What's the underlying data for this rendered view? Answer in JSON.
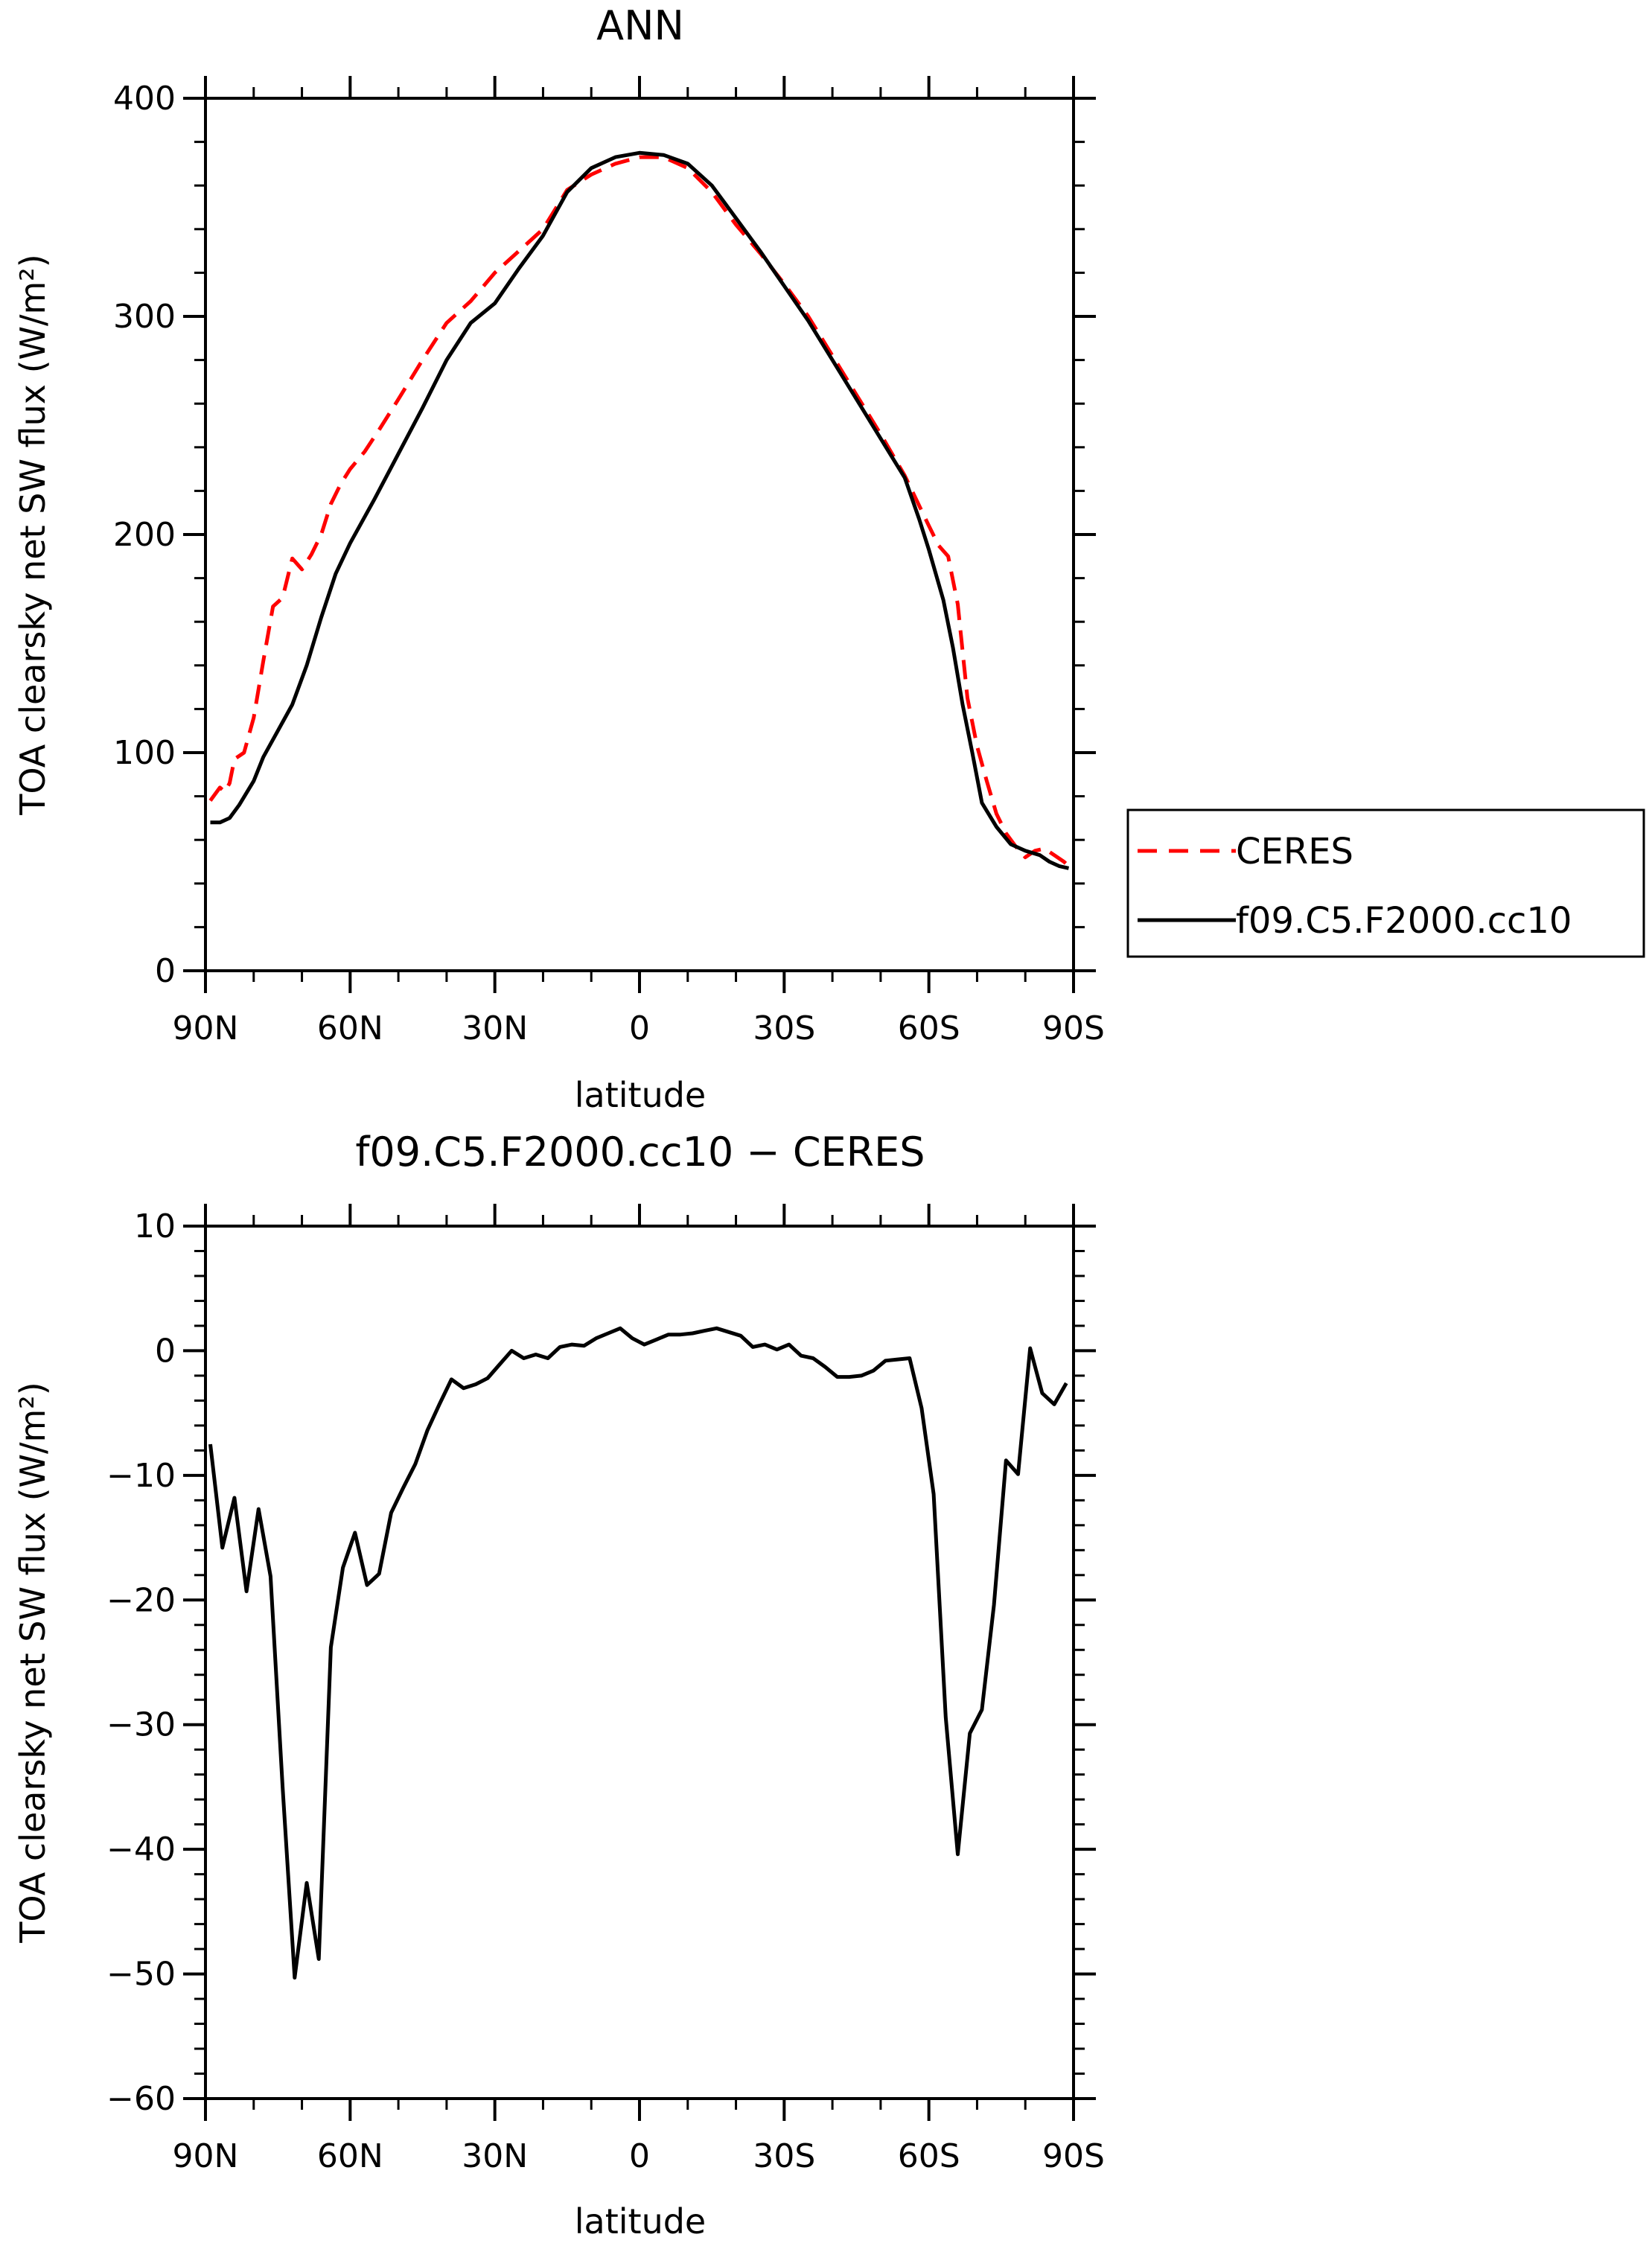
{
  "legend": {
    "items": [
      {
        "label": "CERES",
        "color": "#ff0000",
        "dash": "dashed"
      },
      {
        "label": "f09.C5.F2000.cc10",
        "color": "#000000",
        "dash": "solid"
      }
    ]
  },
  "chart_data": [
    {
      "type": "line",
      "title": "ANN",
      "xlabel": "latitude",
      "ylabel": "TOA clearsky net SW flux (W/m²)",
      "xlim": [
        90,
        -90
      ],
      "ylim": [
        0,
        400
      ],
      "xticks": [
        90,
        60,
        30,
        0,
        -30,
        -60,
        -90
      ],
      "xticklabels": [
        "90N",
        "60N",
        "30N",
        "0",
        "30S",
        "60S",
        "90S"
      ],
      "yticks": [
        0,
        100,
        200,
        300,
        400
      ],
      "yticklabels": [
        "0",
        "100",
        "200",
        "300",
        "400"
      ],
      "grid": false,
      "legend_position": "right",
      "series": [
        {
          "name": "CERES",
          "color": "#ff0000",
          "style": "dashed",
          "x": [
            89,
            87,
            86,
            85,
            84,
            82,
            80,
            78,
            76,
            74,
            72,
            70,
            68,
            66,
            64,
            62,
            60,
            57,
            54,
            50,
            45,
            40,
            35,
            30,
            25,
            20,
            15,
            10,
            5,
            0,
            -5,
            -10,
            -15,
            -20,
            -25,
            -30,
            -35,
            -40,
            -45,
            -50,
            -55,
            -60,
            -62,
            -64,
            -66,
            -68,
            -70,
            -72,
            -74,
            -76,
            -78,
            -80,
            -82,
            -84,
            -86,
            -88,
            -89
          ],
          "y": [
            78,
            84,
            82,
            86,
            97,
            100,
            116,
            142,
            167,
            171,
            189,
            184,
            191,
            200,
            214,
            223,
            230,
            238,
            248,
            262,
            280,
            297,
            307,
            320,
            330,
            340,
            358,
            365,
            370,
            373,
            373,
            368,
            357,
            342,
            329,
            315,
            300,
            282,
            264,
            246,
            227,
            204,
            195,
            190,
            168,
            125,
            103,
            87,
            72,
            63,
            57,
            52,
            55,
            56,
            53,
            50,
            48
          ]
        },
        {
          "name": "f09.C5.F2000.cc10",
          "color": "#000000",
          "style": "solid",
          "x": [
            89,
            87,
            85,
            83,
            80,
            78,
            75,
            72,
            69,
            66,
            63,
            60,
            55,
            50,
            45,
            40,
            35,
            30,
            25,
            20,
            15,
            10,
            5,
            0,
            -5,
            -10,
            -15,
            -20,
            -25,
            -30,
            -35,
            -40,
            -45,
            -50,
            -55,
            -58,
            -60,
            -63,
            -65,
            -67,
            -69,
            -71,
            -74,
            -77,
            -80,
            -83,
            -85,
            -87,
            -89
          ],
          "y": [
            68,
            68,
            70,
            76,
            87,
            98,
            110,
            122,
            140,
            162,
            182,
            196,
            216,
            237,
            258,
            280,
            297,
            306,
            322,
            337,
            357,
            368,
            373,
            375,
            374,
            370,
            360,
            345,
            330,
            314,
            298,
            280,
            262,
            244,
            226,
            207,
            193,
            170,
            148,
            122,
            100,
            77,
            66,
            58,
            55,
            53,
            50,
            48,
            47
          ]
        }
      ]
    },
    {
      "type": "line",
      "title": "f09.C5.F2000.cc10 − CERES",
      "xlabel": "latitude",
      "ylabel": "TOA clearsky net SW flux (W/m²)",
      "xlim": [
        90,
        -90
      ],
      "ylim": [
        -60,
        10
      ],
      "xticks": [
        90,
        60,
        30,
        0,
        -30,
        -60,
        -90
      ],
      "xticklabels": [
        "90N",
        "60N",
        "30N",
        "0",
        "30S",
        "60S",
        "90S"
      ],
      "yticks": [
        -60,
        -50,
        -40,
        -30,
        -20,
        -10,
        0,
        10
      ],
      "yticklabels": [
        "−60",
        "−50",
        "−40",
        "−30",
        "−20",
        "−10",
        "0",
        "10"
      ],
      "grid": false,
      "series": [
        {
          "color": "#000000",
          "style": "solid",
          "x": [
            89,
            86.5,
            84,
            81.5,
            79,
            76.5,
            74,
            71.5,
            69,
            66.5,
            64,
            61.5,
            59,
            56.5,
            54,
            51.5,
            49,
            46.5,
            44,
            41.5,
            39,
            36.5,
            34,
            31.5,
            29,
            26.5,
            24,
            21.5,
            19,
            16.5,
            14,
            11.5,
            9,
            6.5,
            4,
            1.5,
            -1,
            -3.5,
            -6,
            -8.5,
            -11,
            -13.5,
            -16,
            -18.5,
            -21,
            -23.5,
            -26,
            -28.5,
            -31,
            -33.5,
            -36,
            -38.5,
            -41,
            -43.5,
            -46,
            -48.5,
            -51,
            -53.5,
            -56,
            -58.5,
            -61,
            -63.5,
            -66,
            -68.5,
            -71,
            -73.5,
            -76,
            -78.5,
            -81,
            -83.5,
            -86,
            -88.5
          ],
          "y": [
            -7.5,
            -15.8,
            -11.8,
            -19.3,
            -12.7,
            -18.1,
            -35.0,
            -50.3,
            -42.7,
            -48.8,
            -23.8,
            -17.4,
            -14.6,
            -18.8,
            -17.9,
            -13.0,
            -11.0,
            -9.1,
            -6.4,
            -4.3,
            -2.3,
            -3.0,
            -2.7,
            -2.2,
            -1.1,
            0.0,
            -0.6,
            -0.3,
            -0.6,
            0.3,
            0.5,
            0.4,
            1.0,
            1.4,
            1.8,
            1.0,
            0.5,
            0.9,
            1.3,
            1.3,
            1.4,
            1.6,
            1.8,
            1.5,
            1.2,
            0.3,
            0.5,
            0.1,
            0.5,
            -0.4,
            -0.6,
            -1.3,
            -2.1,
            -2.1,
            -2.0,
            -1.6,
            -0.8,
            -0.7,
            -0.6,
            -4.6,
            -11.5,
            -29.4,
            -40.4,
            -30.7,
            -28.8,
            -20.4,
            -8.8,
            -9.9,
            0.2,
            -3.4,
            -4.3,
            -2.6
          ]
        }
      ]
    }
  ]
}
